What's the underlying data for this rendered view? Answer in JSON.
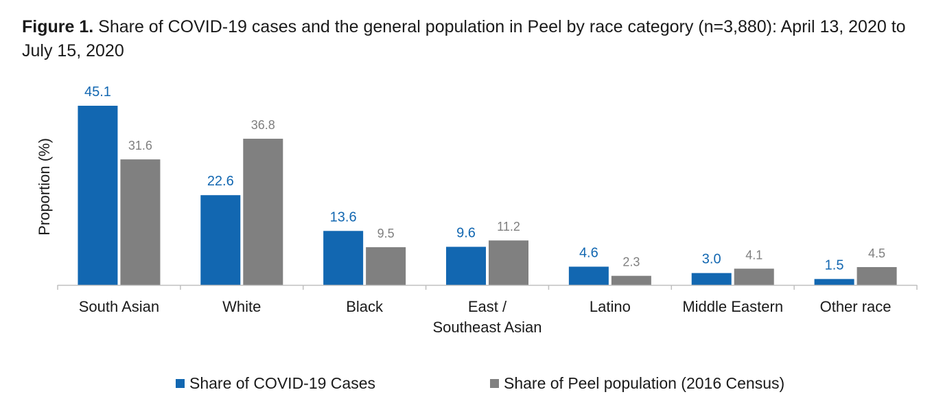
{
  "title": {
    "label": "Figure 1.",
    "text": "Share of COVID-19 cases and the general population in Peel by race category (n=3,880): April 13, 2020 to July 15, 2020"
  },
  "colors": {
    "cases": "#1267b1",
    "population": "#808080",
    "axis": "#bfbfbf"
  },
  "chart_data": {
    "type": "bar",
    "ylabel": "Proportion (%)",
    "xlabel": "",
    "categories": [
      [
        "South Asian"
      ],
      [
        "White"
      ],
      [
        "Black"
      ],
      [
        "East /",
        "Southeast Asian"
      ],
      [
        "Latino"
      ],
      [
        "Middle Eastern"
      ],
      [
        "Other race"
      ]
    ],
    "series": [
      {
        "name": "Share of COVID-19 Cases",
        "values": [
          45.1,
          22.6,
          13.6,
          9.6,
          4.6,
          3.0,
          1.5
        ],
        "value_labels": [
          "45.1",
          "22.6",
          "13.6",
          "9.6",
          "4.6",
          "3.0",
          "1.5"
        ]
      },
      {
        "name": "Share of Peel population (2016 Census)",
        "values": [
          31.6,
          36.8,
          9.5,
          11.2,
          2.3,
          4.1,
          4.5
        ],
        "value_labels": [
          "31.6",
          "36.8",
          "9.5",
          "11.2",
          "2.3",
          "4.1",
          "4.5"
        ]
      }
    ],
    "ylim": [
      0,
      45.1
    ],
    "grid": false,
    "legend_position": "bottom"
  }
}
